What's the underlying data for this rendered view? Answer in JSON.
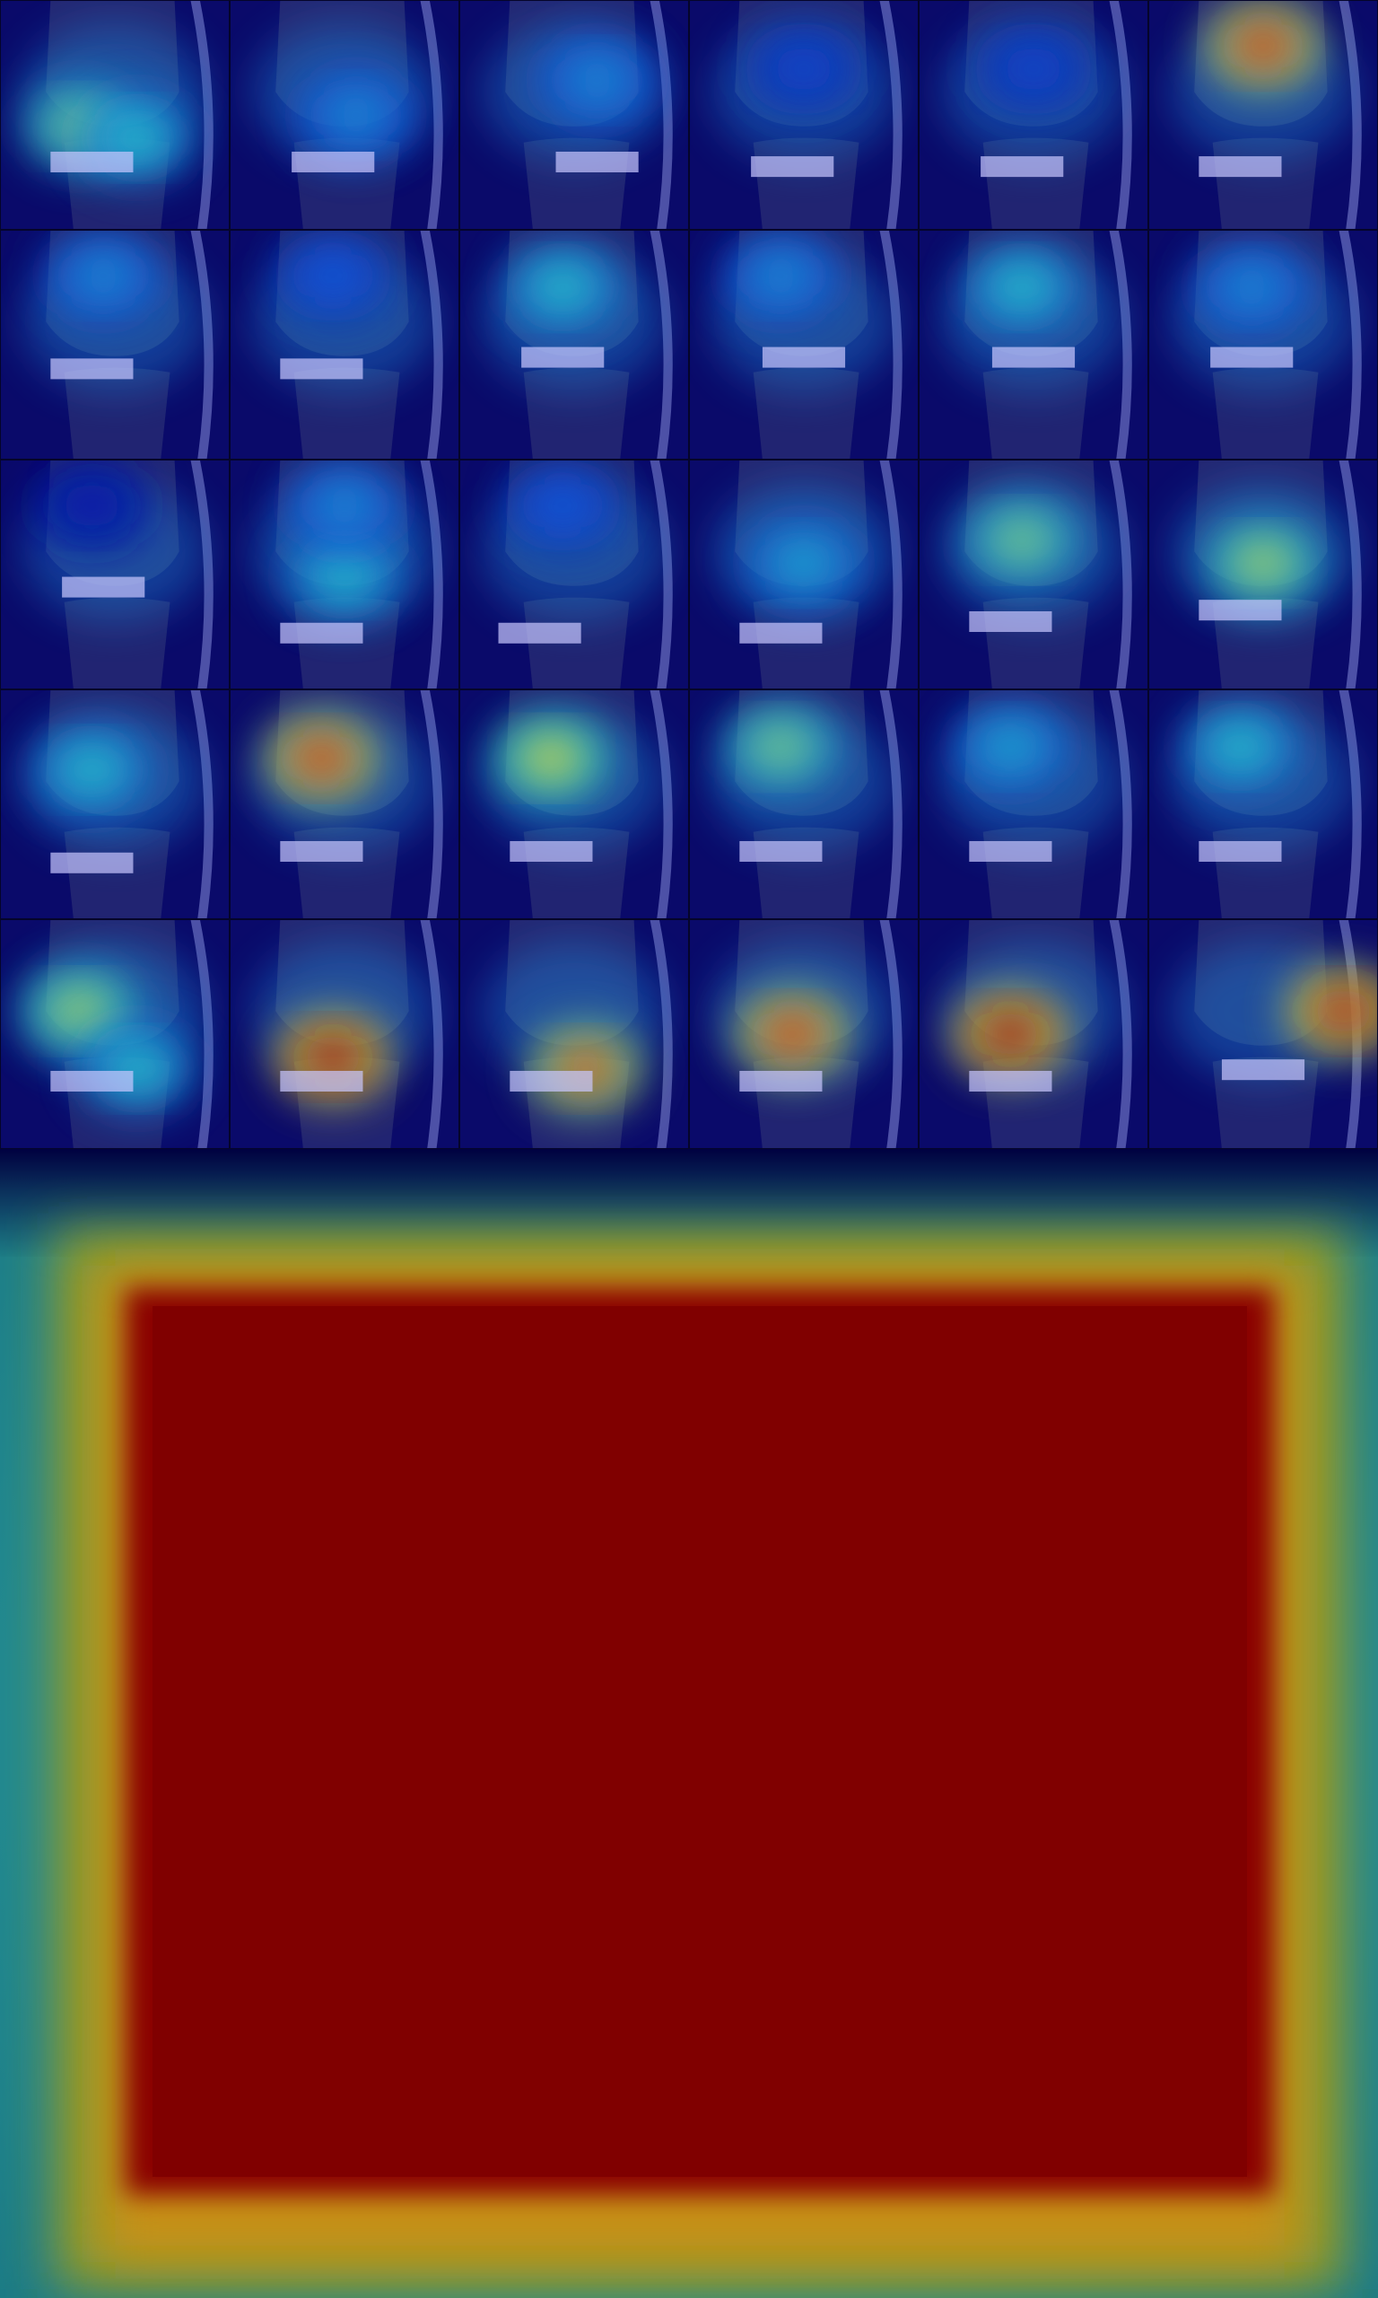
{
  "image": {
    "kind": "knee-mri-heatmap-overlay",
    "colormap": "jet",
    "colors": {
      "low": "#00008b",
      "mid_low": "#1a6fd1",
      "mid": "#2fc0c8",
      "mid_high": "#d8d23a",
      "high": "#cc2a10",
      "max": "#800000"
    }
  },
  "mosaic": {
    "rows": 5,
    "cols": 6,
    "tiles": [
      {
        "hot": [
          [
            0.35,
            0.55,
            0.55
          ],
          [
            0.6,
            0.6,
            0.45
          ]
        ],
        "bright": [
          0.4,
          0.7
        ]
      },
      {
        "hot": [
          [
            0.55,
            0.5,
            0.35
          ]
        ],
        "bright": [
          0.45,
          0.7
        ]
      },
      {
        "hot": [
          [
            0.6,
            0.35,
            0.35
          ]
        ],
        "bright": [
          0.6,
          0.7
        ]
      },
      {
        "hot": [
          [
            0.5,
            0.3,
            0.2
          ]
        ],
        "bright": [
          0.45,
          0.72
        ]
      },
      {
        "hot": [
          [
            0.5,
            0.3,
            0.2
          ]
        ],
        "bright": [
          0.45,
          0.72
        ]
      },
      {
        "hot": [
          [
            0.5,
            0.2,
            0.85
          ]
        ],
        "bright": [
          0.4,
          0.72
        ]
      },
      {
        "hot": [
          [
            0.45,
            0.2,
            0.35
          ]
        ],
        "bright": [
          0.4,
          0.6
        ]
      },
      {
        "hot": [
          [
            0.45,
            0.2,
            0.25
          ]
        ],
        "bright": [
          0.4,
          0.6
        ]
      },
      {
        "hot": [
          [
            0.45,
            0.25,
            0.45
          ]
        ],
        "bright": [
          0.45,
          0.55
        ]
      },
      {
        "hot": [
          [
            0.4,
            0.2,
            0.35
          ]
        ],
        "bright": [
          0.5,
          0.55
        ]
      },
      {
        "hot": [
          [
            0.45,
            0.25,
            0.45
          ]
        ],
        "bright": [
          0.5,
          0.55
        ]
      },
      {
        "hot": [
          [
            0.45,
            0.25,
            0.35
          ]
        ],
        "bright": [
          0.45,
          0.55
        ]
      },
      {
        "hot": [
          [
            0.4,
            0.2,
            0.1
          ]
        ],
        "bright": [
          0.45,
          0.55
        ]
      },
      {
        "hot": [
          [
            0.5,
            0.5,
            0.45
          ],
          [
            0.5,
            0.2,
            0.35
          ]
        ],
        "bright": [
          0.4,
          0.75
        ]
      },
      {
        "hot": [
          [
            0.45,
            0.2,
            0.25
          ]
        ],
        "bright": [
          0.35,
          0.75
        ]
      },
      {
        "hot": [
          [
            0.5,
            0.45,
            0.4
          ]
        ],
        "bright": [
          0.4,
          0.75
        ]
      },
      {
        "hot": [
          [
            0.45,
            0.35,
            0.55
          ]
        ],
        "bright": [
          0.4,
          0.7
        ]
      },
      {
        "hot": [
          [
            0.5,
            0.45,
            0.6
          ]
        ],
        "bright": [
          0.4,
          0.65
        ]
      },
      {
        "hot": [
          [
            0.4,
            0.35,
            0.45
          ]
        ],
        "bright": [
          0.4,
          0.75
        ]
      },
      {
        "hot": [
          [
            0.4,
            0.3,
            0.85
          ]
        ],
        "bright": [
          0.4,
          0.7
        ]
      },
      {
        "hot": [
          [
            0.4,
            0.3,
            0.65
          ]
        ],
        "bright": [
          0.4,
          0.7
        ]
      },
      {
        "hot": [
          [
            0.4,
            0.25,
            0.55
          ]
        ],
        "bright": [
          0.4,
          0.7
        ]
      },
      {
        "hot": [
          [
            0.4,
            0.25,
            0.4
          ]
        ],
        "bright": [
          0.4,
          0.7
        ]
      },
      {
        "hot": [
          [
            0.4,
            0.25,
            0.45
          ]
        ],
        "bright": [
          0.4,
          0.7
        ]
      },
      {
        "hot": [
          [
            0.35,
            0.4,
            0.6
          ],
          [
            0.6,
            0.65,
            0.45
          ]
        ],
        "bright": [
          0.4,
          0.7
        ]
      },
      {
        "hot": [
          [
            0.45,
            0.6,
            0.95
          ]
        ],
        "bright": [
          0.4,
          0.7
        ]
      },
      {
        "hot": [
          [
            0.55,
            0.65,
            0.8
          ]
        ],
        "bright": [
          0.4,
          0.7
        ]
      },
      {
        "hot": [
          [
            0.45,
            0.5,
            0.85
          ]
        ],
        "bright": [
          0.4,
          0.7
        ]
      },
      {
        "hot": [
          [
            0.4,
            0.5,
            0.95
          ]
        ],
        "bright": [
          0.4,
          0.7
        ]
      },
      {
        "hot": [
          [
            0.85,
            0.4,
            0.9
          ]
        ],
        "bright": [
          0.5,
          0.65
        ]
      }
    ]
  },
  "big_heatmap": {
    "description_level": "saturated",
    "inner_value": 1.0,
    "border_value": 0.55,
    "bottom_band_value": 0.65
  }
}
